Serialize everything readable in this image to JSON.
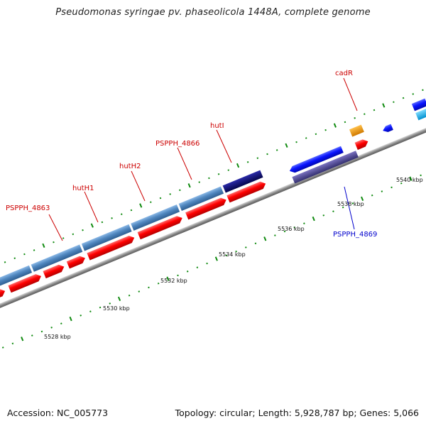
{
  "title": "Pseudomonas syringae pv. phaseolicola 1448A, complete genome",
  "footer": {
    "accession": "Accession: NC_005773",
    "summary": "Topology: circular; Length: 5,928,787 bp; Genes: 5,066"
  },
  "ticks": [
    {
      "label": "5528 kbp"
    },
    {
      "label": "5530 kbp"
    },
    {
      "label": "5532 kbp"
    },
    {
      "label": "5534 kbp"
    },
    {
      "label": "5536 kbp"
    },
    {
      "label": "5538 kbp"
    },
    {
      "label": "5540 kbp"
    }
  ],
  "gene_labels": [
    {
      "text": "PSPPH_4863",
      "color": "#cc0000"
    },
    {
      "text": "hutH1",
      "color": "#cc0000"
    },
    {
      "text": "hutH2",
      "color": "#cc0000"
    },
    {
      "text": "PSPPH_4866",
      "color": "#cc0000"
    },
    {
      "text": "hutI",
      "color": "#cc0000"
    },
    {
      "text": "cadR",
      "color": "#cc0000"
    },
    {
      "text": "PSPPH_4869",
      "color": "#0000cc"
    }
  ],
  "colors": {
    "backbone": "#8a8a8a",
    "cds_forward": "#ff0000",
    "feature_steel": "#4f86be",
    "feature_navy": "#0a0a78",
    "gene_blue": "#0a14ff",
    "feature_slate": "#4a4290",
    "feature_orange": "#f59a00",
    "feature_cyan": "#00b4ff",
    "dot_green": "#0f8a0f"
  }
}
